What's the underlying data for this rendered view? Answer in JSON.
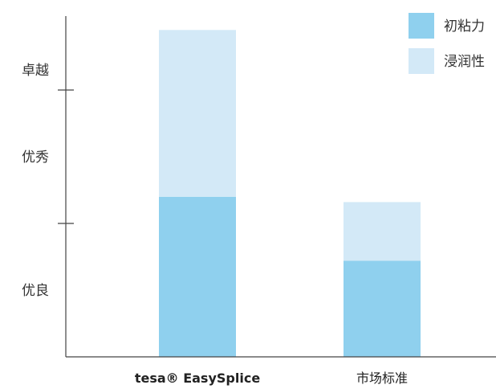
{
  "chart_data": {
    "type": "bar",
    "stacked": true,
    "categories": [
      "tesa® EasySplice",
      "市场标准"
    ],
    "series": [
      {
        "name": "初粘力",
        "values": [
          1.2,
          0.72
        ],
        "color": "#8fd0ee"
      },
      {
        "name": "浸润性",
        "values": [
          1.25,
          0.44
        ],
        "color": "#d3e9f7"
      }
    ],
    "ylim": [
      0,
      2.45
    ],
    "y_tick_marks": [
      1,
      2
    ],
    "y_band_labels": [
      {
        "text": "优良",
        "center": 0.5
      },
      {
        "text": "优秀",
        "center": 1.5
      },
      {
        "text": "卓越",
        "center": 2.15
      }
    ],
    "title": "",
    "xlabel": "",
    "ylabel": "",
    "legend_position": "top-right",
    "grid": false
  }
}
